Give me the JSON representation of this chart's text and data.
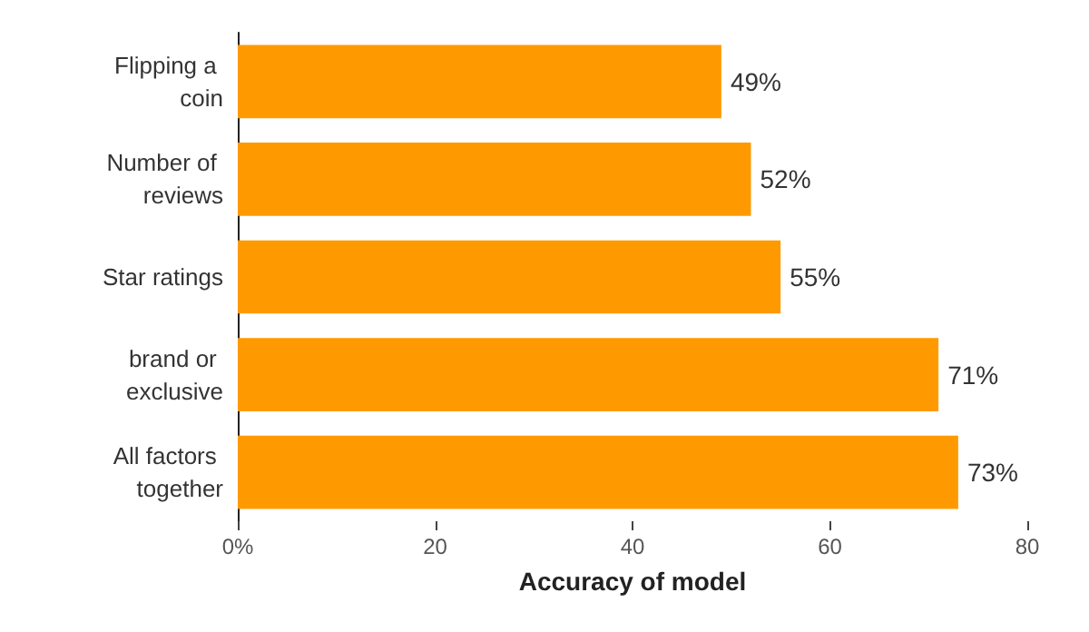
{
  "chart_data": {
    "type": "bar",
    "orientation": "horizontal",
    "categories": [
      "Flipping a coin",
      "Number of reviews",
      "Star ratings",
      "brand or exclusive",
      "All factors together"
    ],
    "values": [
      49,
      52,
      55,
      71,
      73
    ],
    "value_labels": [
      "49%",
      "52%",
      "55%",
      "71%",
      "73%"
    ],
    "color": "#fe9a00",
    "xlabel": "Accuracy of model",
    "xlim": [
      0,
      80
    ],
    "xticks": [
      {
        "value": 0,
        "label": "0%"
      },
      20,
      40,
      60,
      80
    ],
    "grid": false
  }
}
